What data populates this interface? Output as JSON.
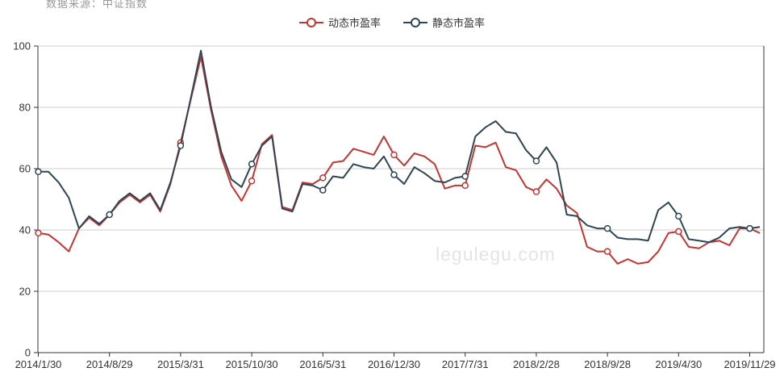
{
  "header": {
    "source_note": "数据来源：中证指数"
  },
  "watermark": "legulegu.com",
  "legend": {
    "items": [
      {
        "label": "动态市盈率",
        "color": "#c23531"
      },
      {
        "label": "静态市盈率",
        "color": "#2f4554"
      }
    ]
  },
  "chart_data": {
    "type": "line",
    "title": "",
    "xlabel": "",
    "ylabel": "",
    "x_tick_labels": [
      "2014/1/30",
      "2014/8/29",
      "2015/3/31",
      "2015/10/30",
      "2016/5/31",
      "2016/12/30",
      "2017/7/31",
      "2018/2/28",
      "2018/9/28",
      "2019/4/30",
      "2019/11/29"
    ],
    "tick_every": 7,
    "n_points": 72,
    "ylim": [
      0,
      100
    ],
    "y_ticks": [
      0,
      20,
      40,
      60,
      80,
      100
    ],
    "grid": true,
    "legend_position": "top-center",
    "marker_every": 7,
    "series": [
      {
        "name": "动态市盈率",
        "color": "#c23531",
        "values": [
          39,
          38.5,
          36,
          33,
          40.5,
          44,
          41.5,
          45,
          49,
          51.5,
          49,
          51.5,
          46,
          55,
          68.5,
          82.5,
          96.5,
          79,
          64,
          54.5,
          49.5,
          56,
          68,
          71,
          47.5,
          46.5,
          55.5,
          55,
          57,
          62,
          62.5,
          66.5,
          65.5,
          64.5,
          70.5,
          64.5,
          61,
          65,
          64,
          61.5,
          53.5,
          54.5,
          54.5,
          67.5,
          67,
          68.5,
          60.5,
          59.5,
          54,
          52.5,
          56.5,
          53.5,
          48,
          45.5,
          34.5,
          33,
          33,
          29,
          30.5,
          29,
          29.5,
          33,
          39,
          39.5,
          34.5,
          34,
          36,
          36.5,
          35,
          40.5,
          40.5,
          39
        ]
      },
      {
        "name": "静态市盈率",
        "color": "#2f4554",
        "values": [
          59,
          59,
          55.5,
          50.5,
          40.5,
          44.5,
          42,
          45,
          49.5,
          52,
          49.5,
          52,
          46.5,
          55.5,
          67.5,
          83,
          98.5,
          80,
          65.5,
          56.5,
          54,
          61.5,
          67.5,
          70.5,
          47,
          46,
          55,
          54.5,
          53,
          57.5,
          57,
          61.5,
          60.5,
          60,
          64,
          58,
          55,
          60.5,
          58.5,
          56,
          55.5,
          57,
          57.5,
          70.5,
          73.5,
          75.5,
          72,
          71.5,
          66,
          62.5,
          67,
          62,
          45,
          44.5,
          41.5,
          40.5,
          40.5,
          37.5,
          37,
          37,
          36.5,
          46.5,
          49,
          44.5,
          37,
          36.5,
          36,
          37.5,
          40.5,
          41,
          40.5,
          41
        ]
      }
    ],
    "axis_colors": {
      "axis_line": "#333333",
      "grid_line": "#cccccc",
      "label": "#333333"
    }
  }
}
